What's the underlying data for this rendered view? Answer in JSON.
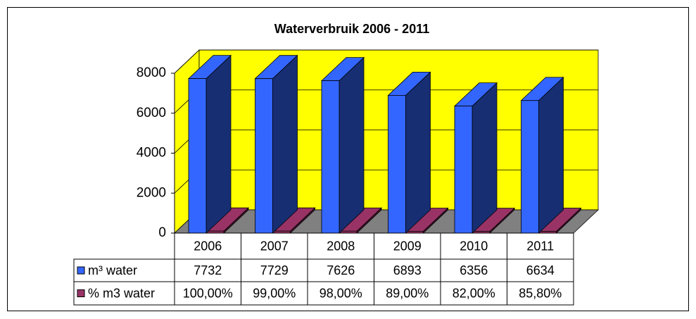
{
  "chart_data": {
    "type": "bar3d",
    "title": "Waterverbruik 2006 - 2011",
    "categories": [
      "2006",
      "2007",
      "2008",
      "2009",
      "2010",
      "2011"
    ],
    "series": [
      {
        "name": "m³ water",
        "color": "#3366ff",
        "values": [
          7732,
          7729,
          7626,
          6893,
          6356,
          6634
        ]
      },
      {
        "name": "% m3 water",
        "color": "#993366",
        "values": [
          100,
          99,
          98,
          89,
          82,
          85.8
        ],
        "value_labels": [
          "100,00%",
          "99,00%",
          "98,00%",
          "89,00%",
          "82,00%",
          "85,80%"
        ]
      }
    ],
    "ylim": [
      0,
      8000
    ],
    "yticks": [
      0,
      2000,
      4000,
      6000,
      8000
    ],
    "grid": true,
    "wall_color": "#ffff00",
    "floor_color": "#808080"
  }
}
